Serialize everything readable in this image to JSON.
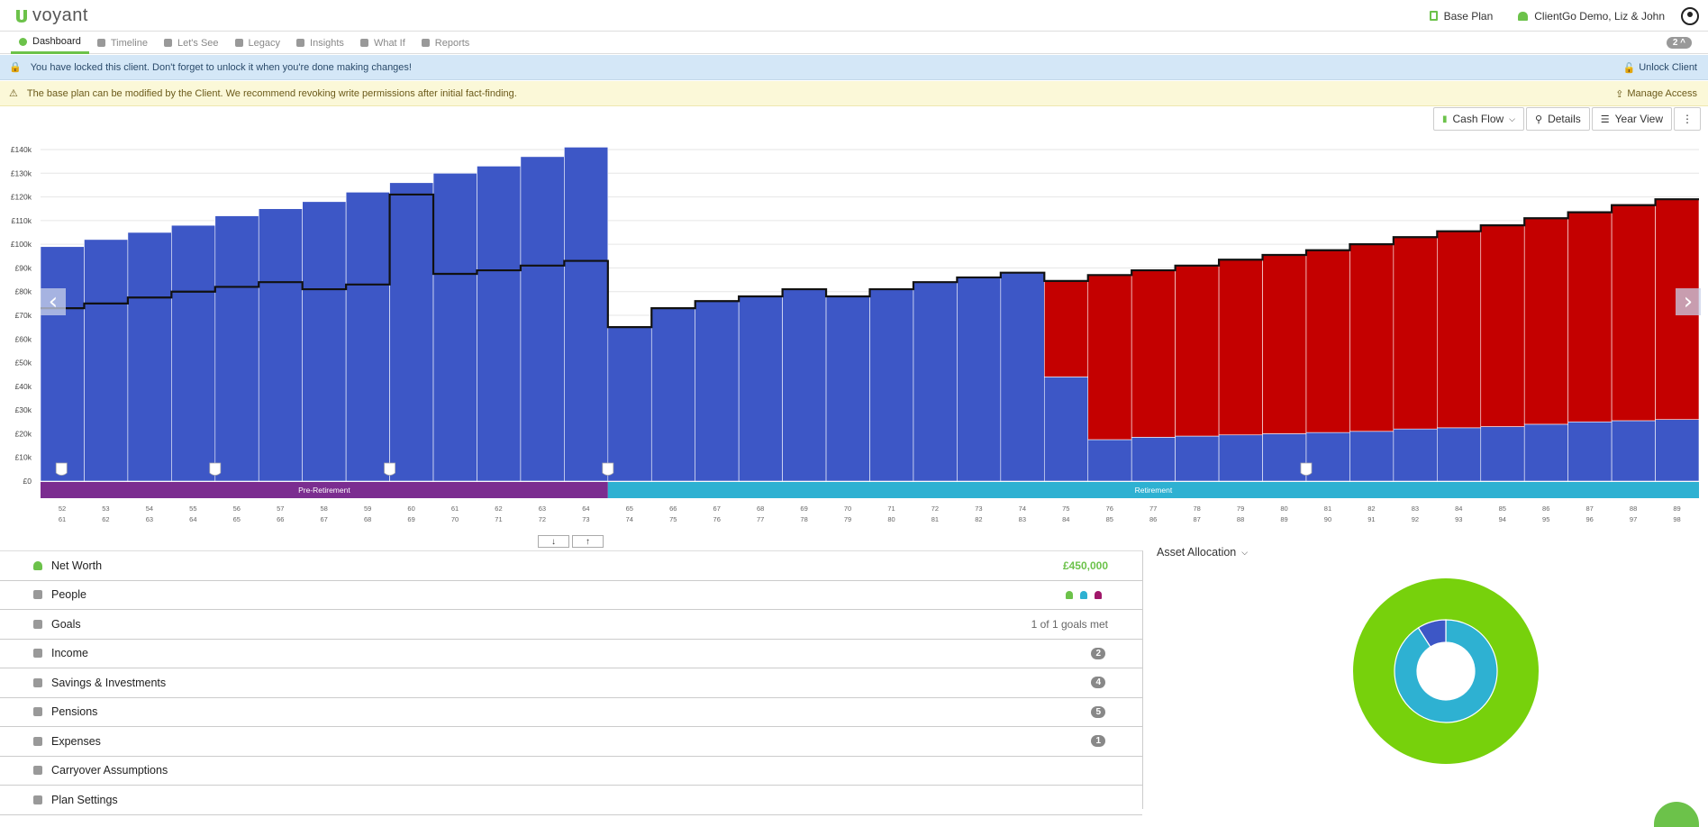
{
  "app": {
    "logo_text": "voyant",
    "base_plan_label": "Base Plan",
    "client_label": "ClientGo Demo, Liz & John"
  },
  "nav": {
    "tabs": [
      {
        "label": "Dashboard",
        "icon": "dashboard-icon",
        "active": true
      },
      {
        "label": "Timeline",
        "icon": "hourglass-icon"
      },
      {
        "label": "Let's See",
        "icon": "bar-chart-icon"
      },
      {
        "label": "Legacy",
        "icon": "tree-icon"
      },
      {
        "label": "Insights",
        "icon": "lightbulb-icon"
      },
      {
        "label": "What If",
        "icon": "chat-icon"
      },
      {
        "label": "Reports",
        "icon": "document-icon"
      }
    ],
    "badge": "2 ^"
  },
  "banners": {
    "lock_text": "You have locked this client. Don't forget to unlock it when you're done making changes!",
    "unlock_label": "Unlock Client",
    "warn_text": "The base plan can be modified by the Client. We recommend revoking write permissions after initial fact-finding.",
    "manage_label": "Manage Access"
  },
  "toolbar": {
    "cashflow_label": "Cash Flow",
    "details_label": "Details",
    "yearview_label": "Year View"
  },
  "colors": {
    "accent": "#6cc24a",
    "income_bar": "#3d57c6",
    "shortfall_bar": "#c40000",
    "pre_retirement": "#7b2d90",
    "retirement": "#2eb1d2"
  },
  "chart_data": {
    "type": "bar",
    "ylim": [
      0,
      140000
    ],
    "y_ticks": [
      "£0",
      "£10k",
      "£20k",
      "£30k",
      "£40k",
      "£50k",
      "£60k",
      "£70k",
      "£80k",
      "£90k",
      "£100k",
      "£110k",
      "£120k",
      "£130k",
      "£140k"
    ],
    "ages_primary": [
      "52",
      "53",
      "54",
      "55",
      "56",
      "57",
      "58",
      "59",
      "60",
      "61",
      "62",
      "63",
      "64",
      "65",
      "66",
      "67",
      "68",
      "69",
      "70",
      "71",
      "72",
      "73",
      "74",
      "75",
      "76",
      "77",
      "78",
      "79",
      "80",
      "81",
      "82",
      "83",
      "84",
      "85",
      "86",
      "87",
      "88",
      "89"
    ],
    "ages_secondary": [
      "61",
      "62",
      "63",
      "64",
      "65",
      "66",
      "67",
      "68",
      "69",
      "70",
      "71",
      "72",
      "73",
      "74",
      "75",
      "76",
      "77",
      "78",
      "79",
      "80",
      "81",
      "82",
      "83",
      "84",
      "85",
      "86",
      "87",
      "88",
      "89",
      "90",
      "91",
      "92",
      "93",
      "94",
      "95",
      "96",
      "97",
      "98"
    ],
    "series": [
      {
        "values": [
          99000,
          102000,
          105000,
          108000,
          112000,
          115000,
          118000,
          122000,
          126000,
          130000,
          133000,
          137000,
          141000,
          65000,
          73000,
          76000,
          78000,
          81000,
          78000,
          81000,
          84000,
          86000,
          88000,
          44000,
          17500,
          18500,
          19000,
          19500,
          20000,
          20500,
          21000,
          22000,
          22500,
          23000,
          24000,
          25000,
          25500,
          26000
        ]
      },
      {
        "values": [
          0,
          0,
          0,
          0,
          0,
          0,
          0,
          0,
          0,
          0,
          0,
          0,
          0,
          0,
          0,
          0,
          0,
          0,
          0,
          0,
          0,
          0,
          0,
          40500,
          69500,
          70500,
          72000,
          74000,
          75500,
          77000,
          79000,
          81000,
          83000,
          85000,
          87000,
          89000,
          91500,
          93000
        ]
      },
      {
        "values": [
          73000,
          75000,
          77500,
          80000,
          82000,
          84000,
          81000,
          83000,
          121000,
          87500,
          89000,
          91000,
          93000,
          65000,
          73000,
          76000,
          78000,
          81000,
          78000,
          81000,
          84000,
          86000,
          88000,
          84500,
          87000,
          89000,
          91000,
          93500,
          95500,
          97500,
          100000,
          103000,
          105500,
          108000,
          111000,
          113500,
          116500,
          119000
        ]
      }
    ],
    "milestone_ages": [
      "52",
      "56",
      "60",
      "65",
      "81"
    ],
    "phases": [
      {
        "label": "Pre-Retirement",
        "from_index": 0,
        "to_index": 13
      },
      {
        "label": "Retirement",
        "from_index": 13,
        "to_index": 38
      }
    ]
  },
  "sections": [
    {
      "label": "Net Worth",
      "value": "£450,000",
      "icon": "gem-icon"
    },
    {
      "label": "People",
      "icon": "people-icon"
    },
    {
      "label": "Goals",
      "value": "1 of 1 goals met",
      "icon": "target-icon"
    },
    {
      "label": "Income",
      "badge": "2",
      "icon": "wallet-icon"
    },
    {
      "label": "Savings & Investments",
      "badge": "4",
      "icon": "piggy-bank-icon"
    },
    {
      "label": "Pensions",
      "badge": "5",
      "icon": "umbrella-icon"
    },
    {
      "label": "Expenses",
      "badge": "1",
      "icon": "tag-icon"
    },
    {
      "label": "Carryover Assumptions",
      "icon": "trophy-icon"
    },
    {
      "label": "Plan Settings",
      "icon": "gear-icon"
    }
  ],
  "people_colors": [
    "#6cc24a",
    "#2eb1d2",
    "#a0186a"
  ],
  "asset_allocation": {
    "title": "Asset Allocation",
    "outer": [
      {
        "value": 100,
        "color": "#77d10c"
      }
    ],
    "inner": [
      {
        "value": 91,
        "color": "#2eb1d2"
      },
      {
        "value": 9,
        "color": "#3d57c6"
      }
    ]
  }
}
